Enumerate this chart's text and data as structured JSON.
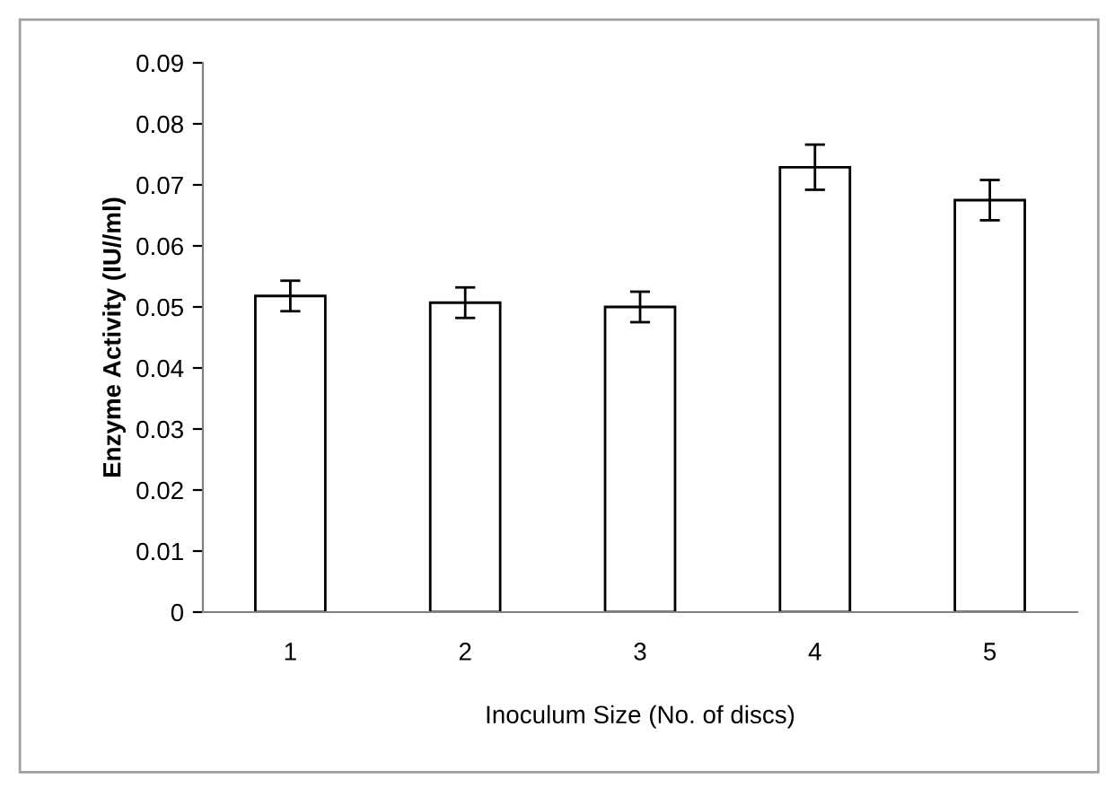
{
  "chart_data": {
    "type": "bar",
    "xlabel": "Inoculum Size (No. of discs)",
    "ylabel": "Enzyme Activity (IU//ml)",
    "categories": [
      "1",
      "2",
      "3",
      "4",
      "5"
    ],
    "values": [
      0.0518,
      0.0507,
      0.05,
      0.0729,
      0.0675
    ],
    "errors": [
      0.0025,
      0.0025,
      0.0025,
      0.0037,
      0.0033
    ],
    "color": "#ffffff",
    "ylim": [
      0,
      0.09
    ],
    "yticks": [
      {
        "value": 0,
        "label": "0"
      },
      {
        "value": 0.01,
        "label": "0.01"
      },
      {
        "value": 0.02,
        "label": "0.02"
      },
      {
        "value": 0.03,
        "label": "0.03"
      },
      {
        "value": 0.04,
        "label": "0.04"
      },
      {
        "value": 0.05,
        "label": "0.05"
      },
      {
        "value": 0.06,
        "label": "0.06"
      },
      {
        "value": 0.07,
        "label": "0.07"
      },
      {
        "value": 0.08,
        "label": "0.08"
      },
      {
        "value": 0.09,
        "label": "0.09"
      }
    ],
    "grid": false,
    "legend": false
  }
}
